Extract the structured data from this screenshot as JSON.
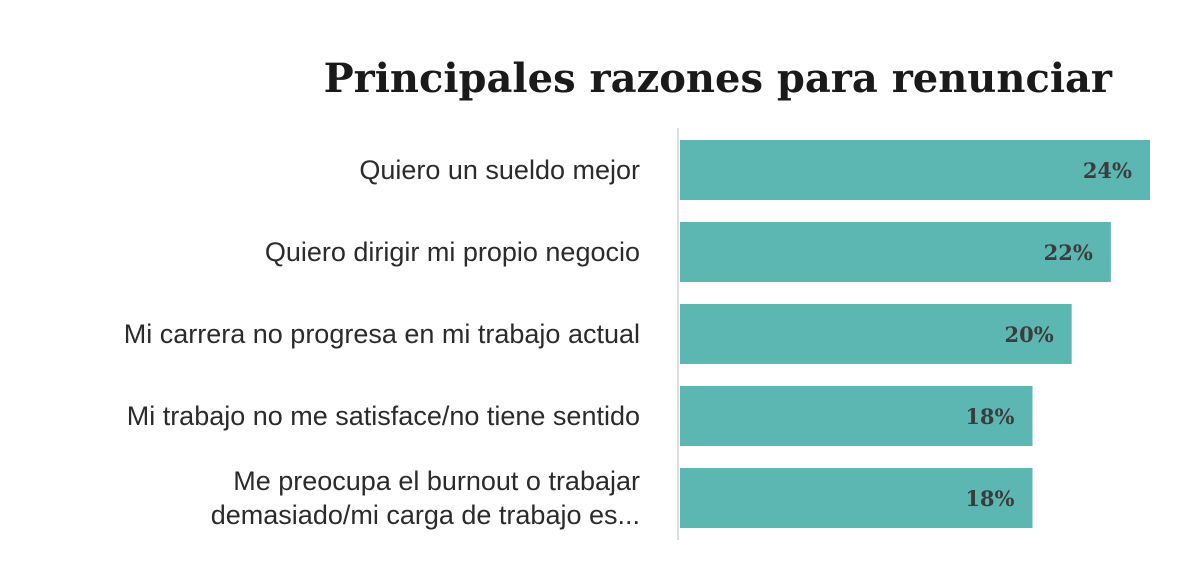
{
  "chart_data": {
    "type": "bar",
    "orientation": "horizontal",
    "title": "Principales razones para renunciar",
    "categories": [
      [
        "Quiero un sueldo mejor"
      ],
      [
        "Quiero dirigir mi propio negocio"
      ],
      [
        "Mi carrera no progresa en mi trabajo actual"
      ],
      [
        "Mi trabajo no me satisface/no tiene sentido"
      ],
      [
        "Me preocupa el burnout o trabajar",
        "demasiado/mi carga de trabajo es..."
      ]
    ],
    "values": [
      24,
      22,
      20,
      18,
      18
    ],
    "value_labels": [
      "24%",
      "22%",
      "20%",
      "18%",
      "18%"
    ],
    "unit": "%",
    "bar_color": "#5cb7b2",
    "xlabel": "",
    "ylabel": "",
    "grid": false,
    "legend": "none"
  }
}
